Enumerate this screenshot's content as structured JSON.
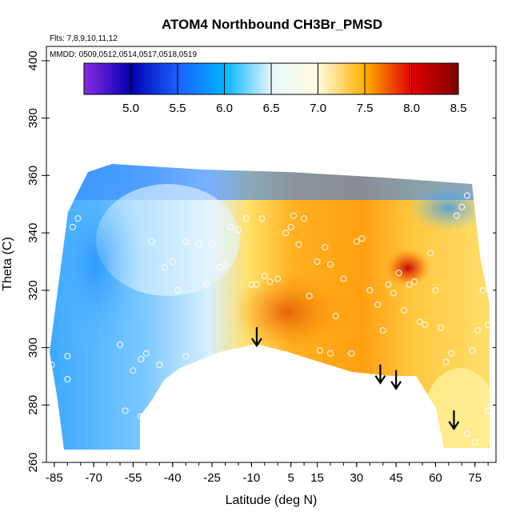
{
  "chart_data": {
    "type": "heatmap",
    "title": "ATOM4 Northbound CH3Br_PMSD",
    "subtitle_flights": "Flts: 7,8,9,10,11,12",
    "subtitle_dates": "MMDD: 0509,0512,0514,0517,0518,0519",
    "xlabel": "Latitude (deg N)",
    "ylabel": "Theta (C)",
    "xlim": [
      -88,
      83
    ],
    "ylim": [
      260,
      405
    ],
    "x_ticks": [
      -85,
      -70,
      -55,
      -40,
      -25,
      -10,
      5,
      15,
      30,
      45,
      60,
      75
    ],
    "x_tick_labels": [
      "-85",
      "-70",
      "-55",
      "-40",
      "-25",
      "-10",
      "5",
      "15",
      "30",
      "45",
      "60",
      "75"
    ],
    "y_ticks": [
      260,
      280,
      300,
      320,
      340,
      360,
      380,
      400
    ],
    "y_tick_labels": [
      "260",
      "280",
      "300",
      "320",
      "340",
      "360",
      "380",
      "400"
    ],
    "colorbar": {
      "range": [
        4.5,
        8.5
      ],
      "ticks": [
        5.0,
        5.5,
        6.0,
        6.5,
        7.0,
        7.5,
        8.0,
        8.5
      ],
      "tick_labels": [
        "5.0",
        "5.5",
        "6.0",
        "6.5",
        "7.0",
        "7.5",
        "8.0",
        "8.5"
      ],
      "colors": [
        "#8a2be2",
        "#0000b0",
        "#1a60ff",
        "#00b4ff",
        "#e6f6ff",
        "#fffde0",
        "#ffb000",
        "#e00000",
        "#800000"
      ]
    },
    "field_regions": [
      {
        "name": "southern-high-latitude",
        "lat_range": [
          -88,
          -45
        ],
        "theta_range": [
          265,
          358
        ],
        "value": 6.0
      },
      {
        "name": "southern-subtropics",
        "lat_range": [
          -45,
          -12
        ],
        "theta_range": [
          292,
          350
        ],
        "value": 6.4
      },
      {
        "name": "tropical-upper",
        "lat_range": [
          -40,
          0
        ],
        "theta_range": [
          335,
          355
        ],
        "value": 6.3
      },
      {
        "name": "tropical-lower",
        "lat_range": [
          -12,
          30
        ],
        "theta_range": [
          296,
          345
        ],
        "value": 7.4
      },
      {
        "name": "northern-midlatitude",
        "lat_range": [
          30,
          58
        ],
        "theta_range": [
          288,
          345
        ],
        "value": 7.3
      },
      {
        "name": "northern-polar-lower",
        "lat_range": [
          58,
          83
        ],
        "theta_range": [
          263,
          310
        ],
        "value": 7.0
      },
      {
        "name": "upper-stratosphere-cap",
        "lat_range": [
          -40,
          83
        ],
        "theta_range": [
          350,
          360
        ],
        "value": 5.6
      }
    ],
    "hotspots": [
      {
        "lat": 51,
        "theta": 325,
        "value": 8.2
      },
      {
        "lat": 2,
        "theta": 303,
        "value": 7.7
      }
    ],
    "arrows_lat": [
      -8,
      39,
      45,
      67
    ],
    "arrows_theta": [
      301,
      288,
      286,
      272
    ]
  }
}
